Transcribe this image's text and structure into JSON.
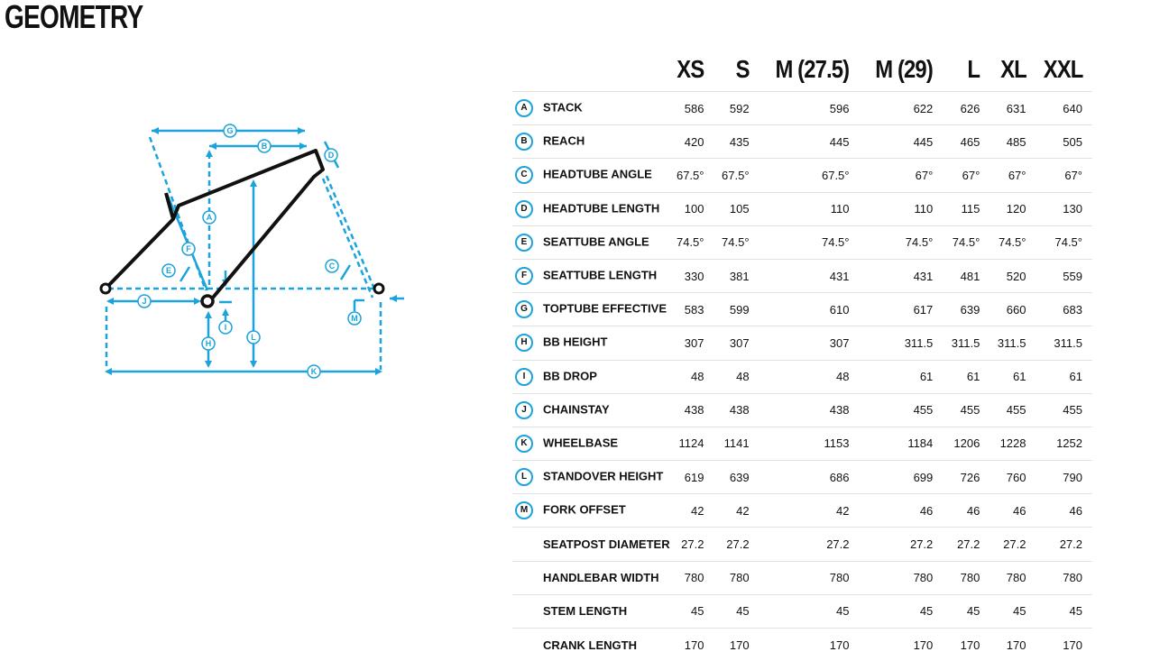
{
  "title": "GEOMETRY",
  "accent_color": "#1aa3dd",
  "sizes": [
    "XS",
    "S",
    "M (27.5)",
    "M (29)",
    "L",
    "XL",
    "XXL"
  ],
  "rows": [
    {
      "badge": "A",
      "label": "STACK",
      "values": [
        "586",
        "592",
        "596",
        "622",
        "626",
        "631",
        "640"
      ]
    },
    {
      "badge": "B",
      "label": "REACH",
      "values": [
        "420",
        "435",
        "445",
        "445",
        "465",
        "485",
        "505"
      ]
    },
    {
      "badge": "C",
      "label": "HEADTUBE ANGLE",
      "values": [
        "67.5°",
        "67.5°",
        "67.5°",
        "67°",
        "67°",
        "67°",
        "67°"
      ]
    },
    {
      "badge": "D",
      "label": "HEADTUBE LENGTH",
      "values": [
        "100",
        "105",
        "110",
        "110",
        "115",
        "120",
        "130"
      ]
    },
    {
      "badge": "E",
      "label": "SEATTUBE ANGLE",
      "values": [
        "74.5°",
        "74.5°",
        "74.5°",
        "74.5°",
        "74.5°",
        "74.5°",
        "74.5°"
      ]
    },
    {
      "badge": "F",
      "label": "SEATTUBE LENGTH",
      "values": [
        "330",
        "381",
        "431",
        "431",
        "481",
        "520",
        "559"
      ]
    },
    {
      "badge": "G",
      "label": "TOPTUBE EFFECTIVE",
      "values": [
        "583",
        "599",
        "610",
        "617",
        "639",
        "660",
        "683"
      ]
    },
    {
      "badge": "H",
      "label": "BB HEIGHT",
      "values": [
        "307",
        "307",
        "307",
        "311.5",
        "311.5",
        "311.5",
        "311.5"
      ]
    },
    {
      "badge": "I",
      "label": "BB DROP",
      "values": [
        "48",
        "48",
        "48",
        "61",
        "61",
        "61",
        "61"
      ]
    },
    {
      "badge": "J",
      "label": "CHAINSTAY",
      "values": [
        "438",
        "438",
        "438",
        "455",
        "455",
        "455",
        "455"
      ]
    },
    {
      "badge": "K",
      "label": "WHEELBASE",
      "values": [
        "1124",
        "1141",
        "1153",
        "1184",
        "1206",
        "1228",
        "1252"
      ]
    },
    {
      "badge": "L",
      "label": "STANDOVER HEIGHT",
      "values": [
        "619",
        "639",
        "686",
        "699",
        "726",
        "760",
        "790"
      ]
    },
    {
      "badge": "M",
      "label": "FORK OFFSET",
      "values": [
        "42",
        "42",
        "42",
        "46",
        "46",
        "46",
        "46"
      ]
    },
    {
      "badge": "",
      "label": "SEATPOST DIAMETER",
      "values": [
        "27.2",
        "27.2",
        "27.2",
        "27.2",
        "27.2",
        "27.2",
        "27.2"
      ]
    },
    {
      "badge": "",
      "label": "HANDLEBAR WIDTH",
      "values": [
        "780",
        "780",
        "780",
        "780",
        "780",
        "780",
        "780"
      ]
    },
    {
      "badge": "",
      "label": "STEM LENGTH",
      "values": [
        "45",
        "45",
        "45",
        "45",
        "45",
        "45",
        "45"
      ]
    },
    {
      "badge": "",
      "label": "CRANK LENGTH",
      "values": [
        "170",
        "170",
        "170",
        "170",
        "170",
        "170",
        "170"
      ]
    }
  ],
  "diagram_labels": [
    "A",
    "B",
    "C",
    "D",
    "E",
    "F",
    "G",
    "H",
    "I",
    "J",
    "K",
    "L",
    "M"
  ]
}
